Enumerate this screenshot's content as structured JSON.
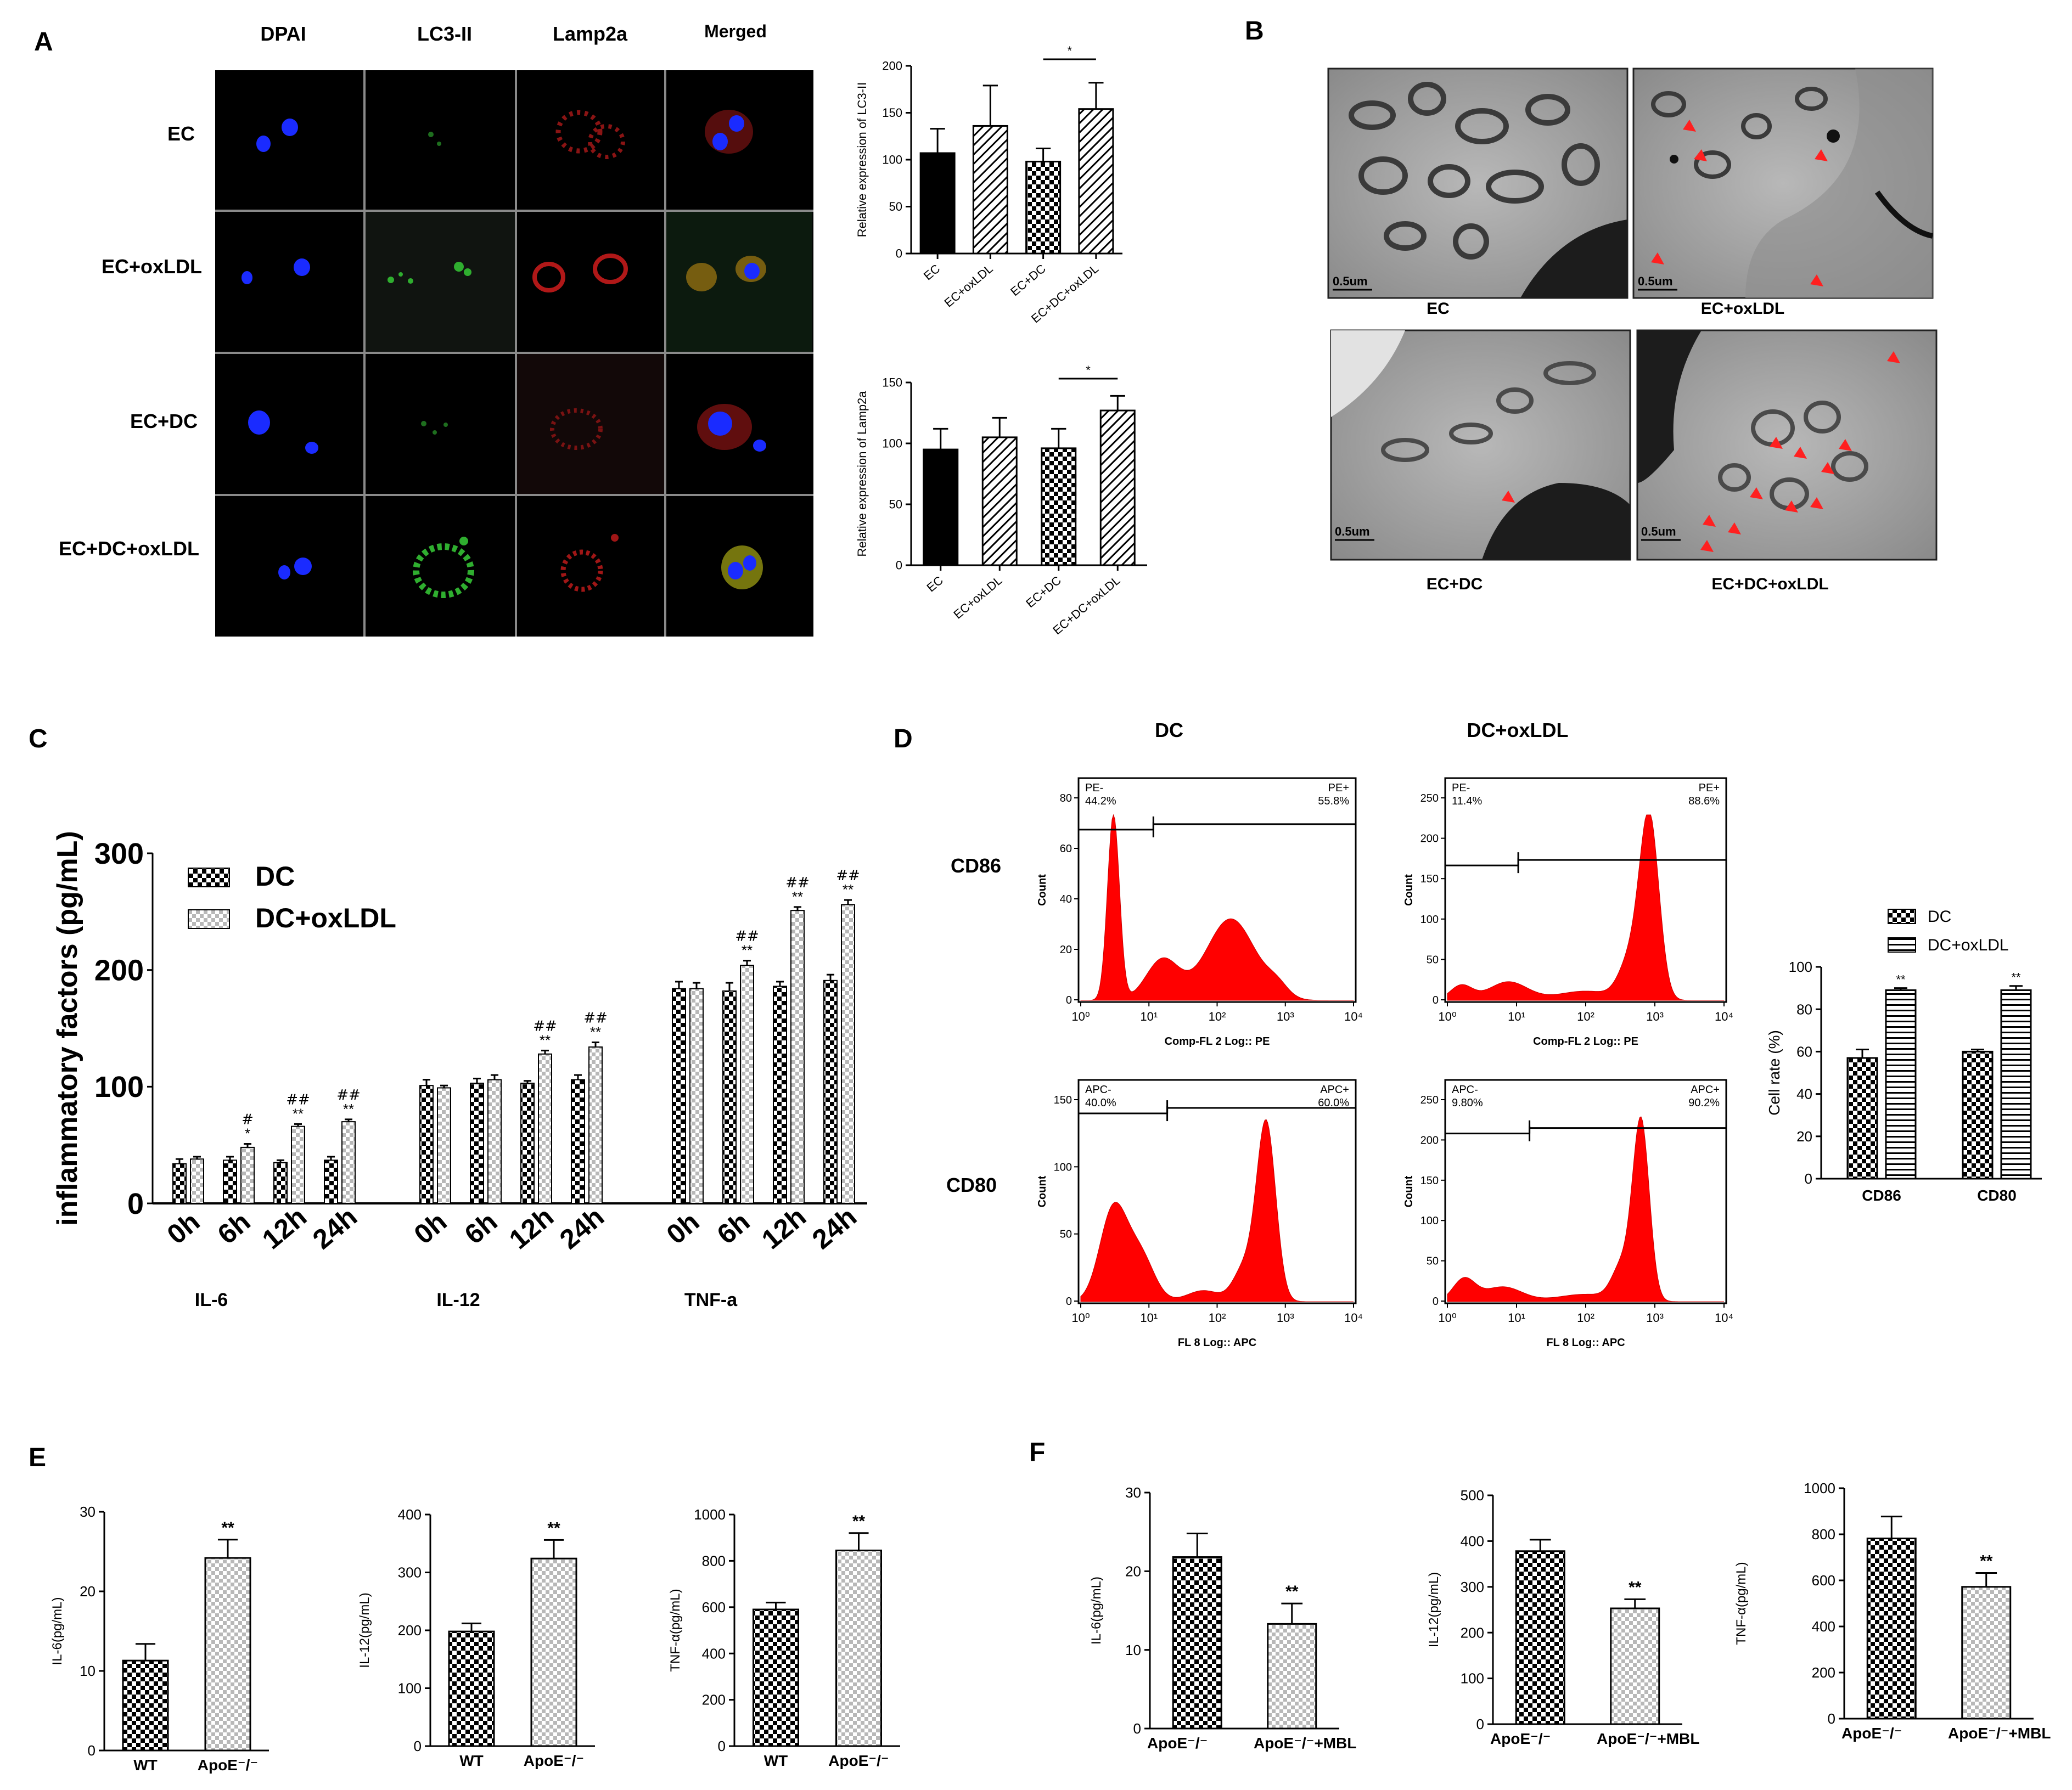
{
  "panels": {
    "A": {
      "letter": "A",
      "columns": [
        "DPAI",
        "LC3-II",
        "Lamp2a",
        "Merged"
      ],
      "rows": [
        "EC",
        "EC+oxLDL",
        "EC+DC",
        "EC+DC+oxLDL"
      ]
    },
    "B": {
      "letter": "B",
      "images": [
        {
          "label": "EC",
          "scale": "0.5um"
        },
        {
          "label": "EC+oxLDL",
          "scale": "0.5um"
        },
        {
          "label": "EC+DC",
          "scale": "0.5um"
        },
        {
          "label": "EC+DC+oxLDL",
          "scale": "0.5um"
        }
      ]
    },
    "C": {
      "letter": "C",
      "groups": [
        "IL-6",
        "IL-12",
        "TNF-a"
      ]
    },
    "D": {
      "letter": "D",
      "col_headers": [
        "DC",
        "DC+oxLDL"
      ],
      "row_headers": [
        "CD86",
        "CD80"
      ],
      "flow": [
        {
          "gate_left": "PE-",
          "pct_left": "44.2%",
          "gate_right": "PE+",
          "pct_right": "55.8%",
          "xlabel": "Comp-FL 2 Log:: PE",
          "ylabel": "Count",
          "yticks": [
            "0",
            "20",
            "40",
            "60",
            "80"
          ]
        },
        {
          "gate_left": "PE-",
          "pct_left": "11.4%",
          "gate_right": "PE+",
          "pct_right": "88.6%",
          "xlabel": "Comp-FL 2 Log:: PE",
          "ylabel": "Count",
          "yticks": [
            "0",
            "50",
            "100",
            "150",
            "200",
            "250"
          ]
        },
        {
          "gate_left": "APC-",
          "pct_left": "40.0%",
          "gate_right": "APC+",
          "pct_right": "60.0%",
          "xlabel": "FL 8 Log:: APC",
          "ylabel": "Count",
          "yticks": [
            "0",
            "50",
            "100",
            "150"
          ]
        },
        {
          "gate_left": "APC-",
          "pct_left": "9.80%",
          "gate_right": "APC+",
          "pct_right": "90.2%",
          "xlabel": "FL 8 Log:: APC",
          "ylabel": "Count",
          "yticks": [
            "0",
            "50",
            "100",
            "150",
            "200",
            "250"
          ]
        }
      ],
      "xticks": [
        "10⁰",
        "10¹",
        "10²",
        "10³",
        "10⁴"
      ]
    },
    "E": {
      "letter": "E"
    },
    "F": {
      "letter": "F"
    }
  },
  "colors": {
    "fluor_blue": "#1a2bff",
    "fluor_green": "#2fae2f",
    "fluor_red": "#c81e1e",
    "flow_red": "#ff0000",
    "arrow_red": "#ff2020",
    "bar_black": "#000000"
  },
  "chart_data": [
    {
      "id": "A_lc3",
      "type": "bar",
      "ylabel": "Relative expression of LC3-II",
      "categories": [
        "EC",
        "EC+oxLDL",
        "EC+DC",
        "EC+DC+oxLDL"
      ],
      "values": [
        107,
        136,
        98,
        154
      ],
      "errors": [
        26,
        43,
        14,
        28
      ],
      "ylim": [
        0,
        200
      ],
      "yticks": [
        0,
        50,
        100,
        150,
        200
      ],
      "significance": "*"
    },
    {
      "id": "A_lamp",
      "type": "bar",
      "ylabel": "Relative expression of Lamp2a",
      "categories": [
        "EC",
        "EC+oxLDL",
        "EC+DC",
        "EC+DC+oxLDL"
      ],
      "values": [
        95,
        105,
        96,
        127
      ],
      "errors": [
        17,
        16,
        16,
        12
      ],
      "ylim": [
        0,
        150
      ],
      "yticks": [
        0,
        50,
        100,
        150
      ],
      "significance": "*"
    },
    {
      "id": "C",
      "type": "bar",
      "ylabel": "inflammatory factors (pg/mL)",
      "ylim": [
        0,
        300
      ],
      "yticks": [
        0,
        100,
        200,
        300
      ],
      "x_labels": [
        "0h",
        "6h",
        "12h",
        "24h"
      ],
      "groups": [
        "IL-6",
        "IL-12",
        "TNF-a"
      ],
      "series": [
        {
          "name": "DC",
          "values": [
            [
              34,
              37,
              35,
              37
            ],
            [
              101,
              103,
              103,
              106
            ],
            [
              184,
              182,
              186,
              191
            ]
          ],
          "errors": [
            [
              4,
              3,
              2,
              3
            ],
            [
              5,
              4,
              2,
              4
            ],
            [
              6,
              7,
              4,
              5
            ]
          ]
        },
        {
          "name": "DC+oxLDL",
          "values": [
            [
              38,
              48,
              66,
              70
            ],
            [
              99,
              106,
              128,
              134
            ],
            [
              184,
              204,
              251,
              256
            ]
          ],
          "errors": [
            [
              2,
              3,
              2,
              2
            ],
            [
              2,
              4,
              3,
              4
            ],
            [
              5,
              4,
              3,
              4
            ]
          ]
        }
      ],
      "annotations": [
        [
          [
            "",
            ""
          ],
          [
            "*",
            "#"
          ],
          [
            "**",
            "##"
          ],
          [
            "**",
            "##"
          ]
        ],
        [
          [
            "",
            ""
          ],
          [
            "",
            ""
          ],
          [
            "**",
            "##"
          ],
          [
            "**",
            "##"
          ]
        ],
        [
          [
            "",
            ""
          ],
          [
            "**",
            "##"
          ],
          [
            "**",
            "##"
          ],
          [
            "**",
            "##"
          ]
        ]
      ]
    },
    {
      "id": "D_bar",
      "type": "bar",
      "ylabel": "Cell rate (%)",
      "ylim": [
        0,
        100
      ],
      "yticks": [
        0,
        20,
        40,
        60,
        80,
        100
      ],
      "categories": [
        "CD86",
        "CD80"
      ],
      "series": [
        {
          "name": "DC",
          "values": [
            57,
            60
          ],
          "errors": [
            4,
            1
          ]
        },
        {
          "name": "DC+oxLDL",
          "values": [
            89,
            89
          ],
          "errors": [
            1,
            2
          ]
        }
      ],
      "significance": [
        "**",
        "**"
      ]
    },
    {
      "id": "E1",
      "type": "bar",
      "ylabel": "IL-6(pg/mL)",
      "ylim": [
        0,
        30
      ],
      "yticks": [
        0,
        10,
        20,
        30
      ],
      "categories": [
        "WT",
        "ApoE⁻/⁻"
      ],
      "values": [
        11.3,
        24.2
      ],
      "errors": [
        2.1,
        2.3
      ],
      "significance": "**"
    },
    {
      "id": "E2",
      "type": "bar",
      "ylabel": "IL-12(pg/mL)",
      "ylim": [
        0,
        400
      ],
      "yticks": [
        0,
        100,
        200,
        300,
        400
      ],
      "categories": [
        "WT",
        "ApoE⁻/⁻"
      ],
      "values": [
        198,
        324
      ],
      "errors": [
        14,
        32
      ],
      "significance": "**"
    },
    {
      "id": "E3",
      "type": "bar",
      "ylabel": "TNF-α(pg/mL)",
      "ylim": [
        0,
        1000
      ],
      "yticks": [
        0,
        200,
        400,
        600,
        800,
        1000
      ],
      "categories": [
        "WT",
        "ApoE⁻/⁻"
      ],
      "values": [
        590,
        845
      ],
      "errors": [
        30,
        75
      ],
      "significance": "**"
    },
    {
      "id": "F1",
      "type": "bar",
      "ylabel": "IL-6(pg/mL)",
      "ylim": [
        0,
        30
      ],
      "yticks": [
        0,
        10,
        20,
        30
      ],
      "categories": [
        "ApoE⁻/⁻",
        "ApoE⁻/⁻+MBL"
      ],
      "values": [
        21.8,
        13.3
      ],
      "errors": [
        3.0,
        2.6
      ],
      "significance": "**"
    },
    {
      "id": "F2",
      "type": "bar",
      "ylabel": "IL-12(pg/mL)",
      "ylim": [
        0,
        500
      ],
      "yticks": [
        0,
        100,
        200,
        300,
        400,
        500
      ],
      "categories": [
        "ApoE⁻/⁻",
        "ApoE⁻/⁻+MBL"
      ],
      "values": [
        378,
        253
      ],
      "errors": [
        25,
        20
      ],
      "significance": "**"
    },
    {
      "id": "F3",
      "type": "bar",
      "ylabel": "TNF-α(pg/mL)",
      "ylim": [
        0,
        1000
      ],
      "yticks": [
        0,
        200,
        400,
        600,
        800,
        1000
      ],
      "categories": [
        "ApoE⁻/⁻",
        "ApoE⁻/⁻+MBL"
      ],
      "values": [
        782,
        572
      ],
      "errors": [
        95,
        60
      ],
      "significance": "**"
    }
  ]
}
